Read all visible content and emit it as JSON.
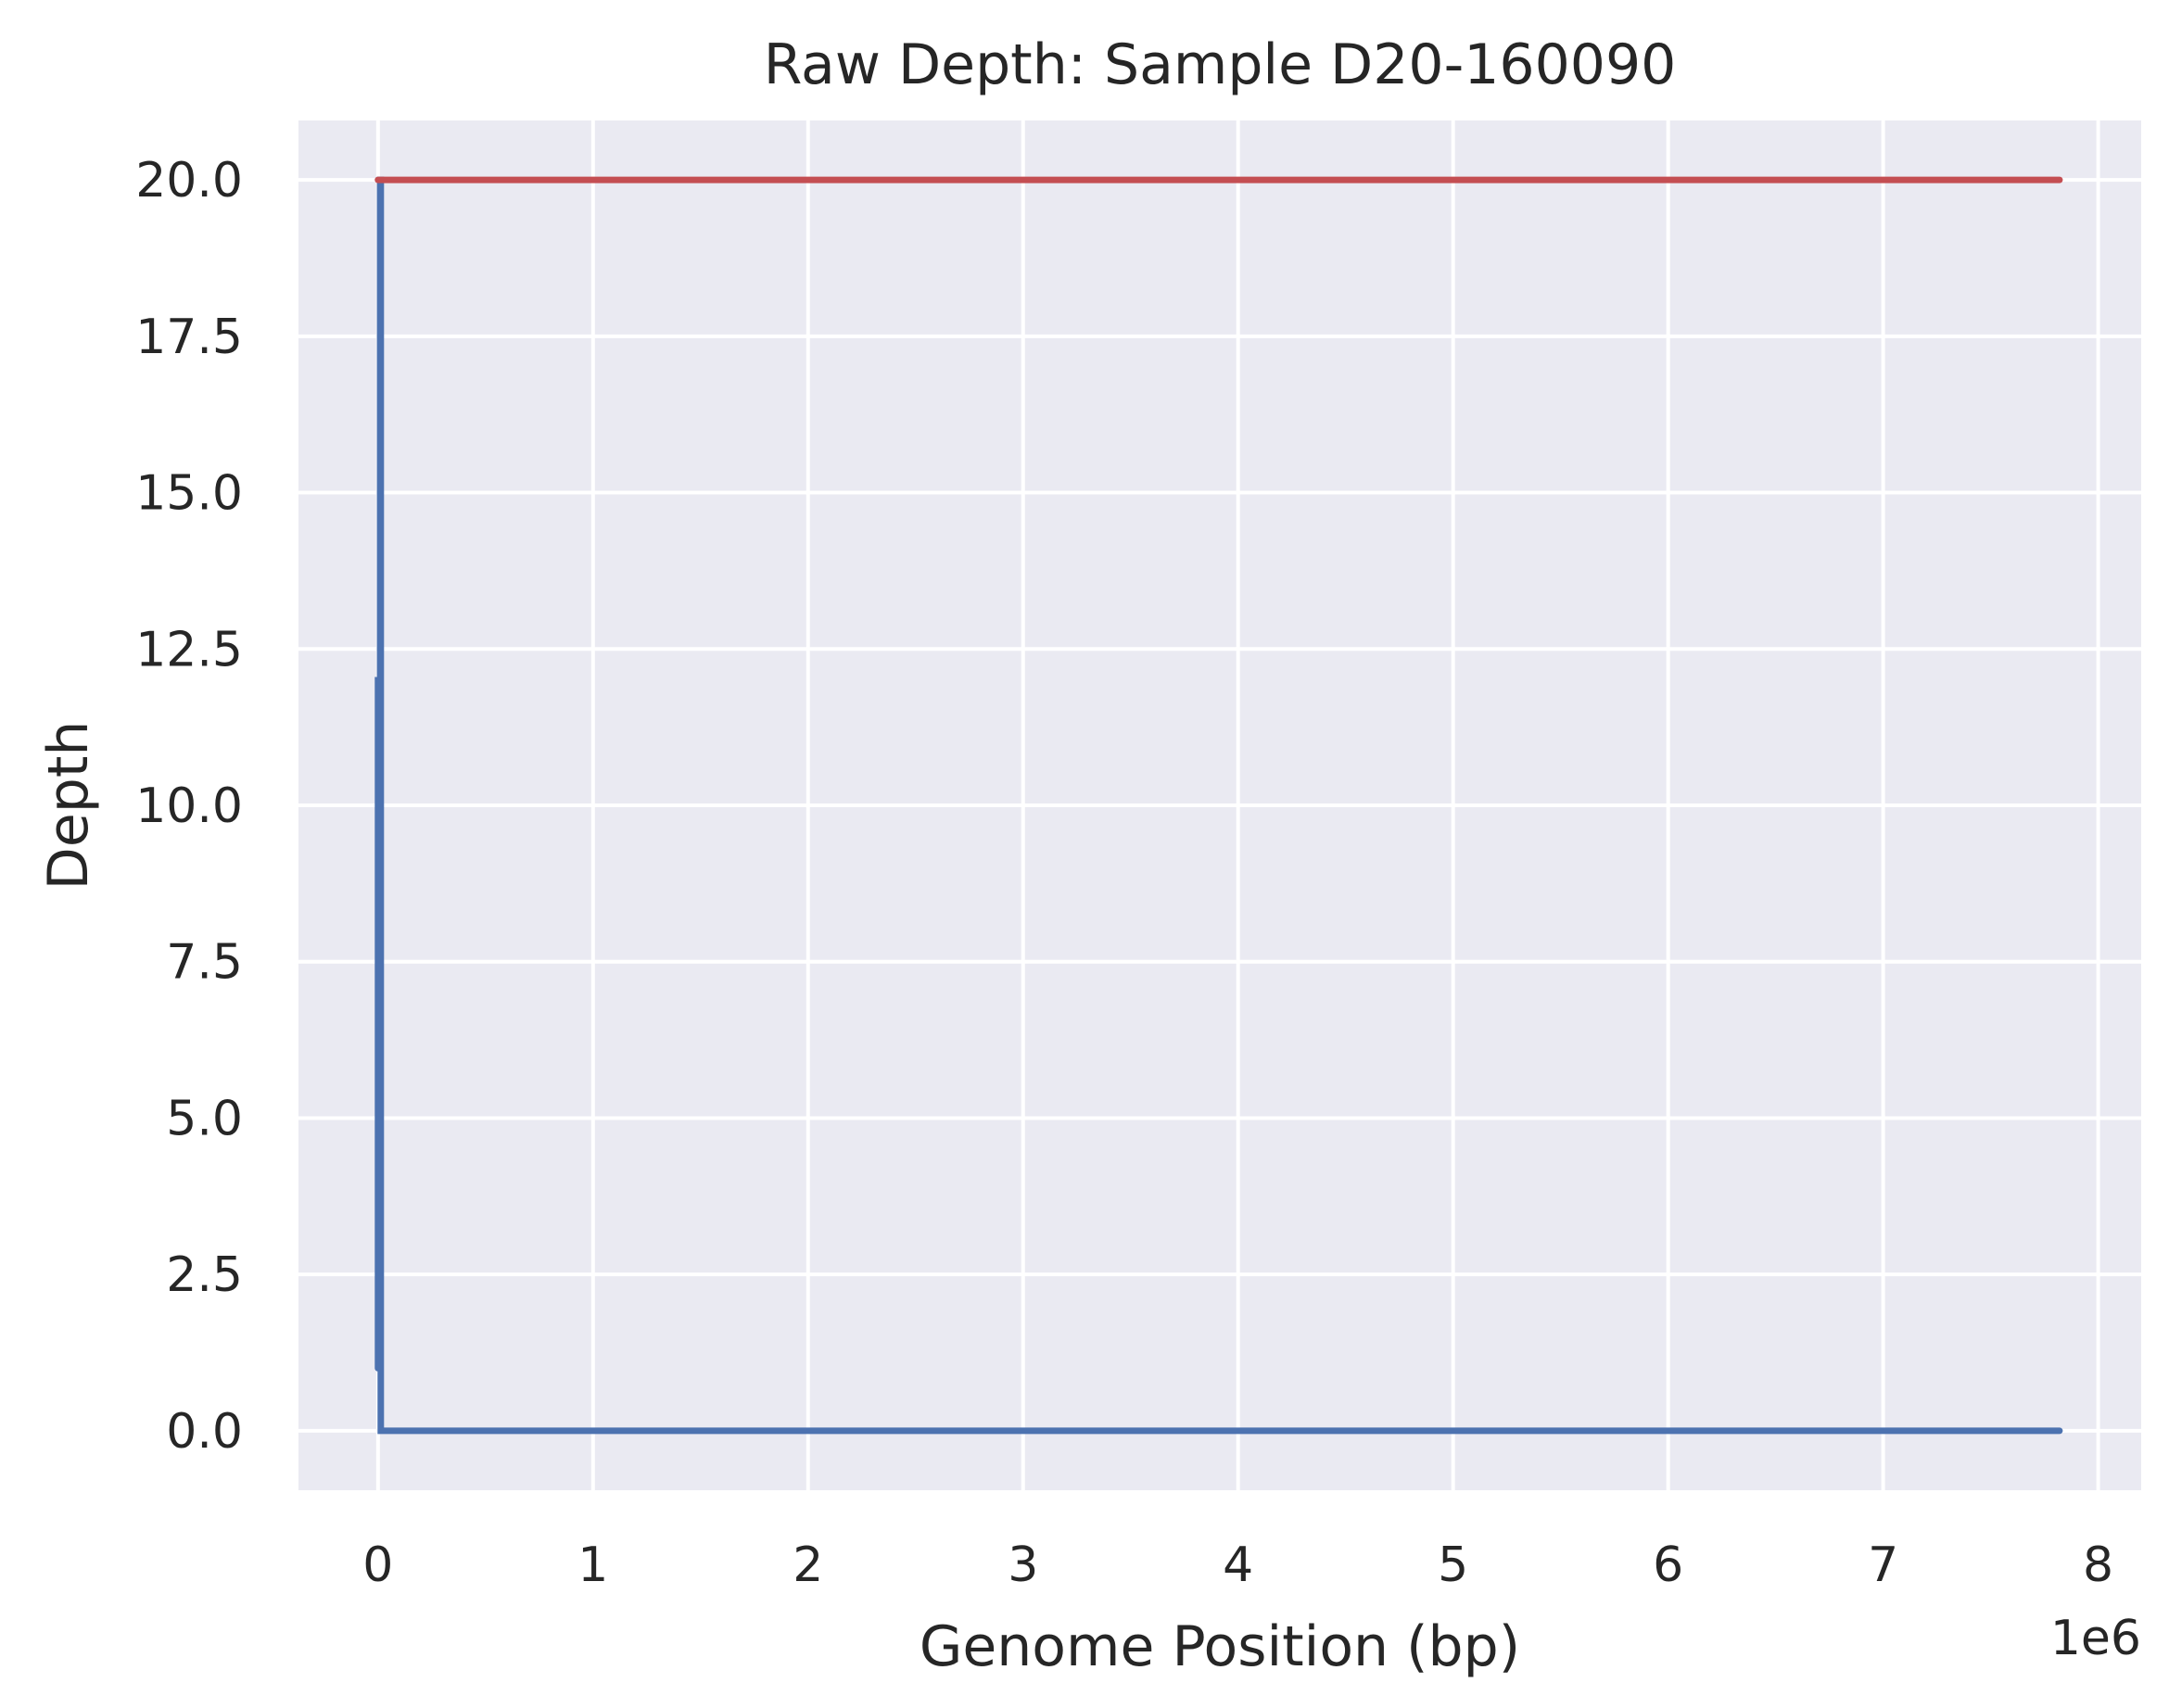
{
  "chart_data": {
    "type": "line",
    "title": "Raw Depth: Sample D20-160090",
    "xlabel": "Genome Position (bp)",
    "ylabel": "Depth",
    "x_offset_label": "1e6",
    "xlim": [
      -0.37,
      8.2
    ],
    "ylim": [
      -0.95,
      20.95
    ],
    "x_ticks": [
      0,
      1,
      2,
      3,
      4,
      5,
      6,
      7,
      8
    ],
    "x_tick_labels": [
      "0",
      "1",
      "2",
      "3",
      "4",
      "5",
      "6",
      "7",
      "8"
    ],
    "y_ticks": [
      0,
      2.5,
      5,
      7.5,
      10,
      12.5,
      15,
      17.5,
      20
    ],
    "y_tick_labels": [
      "0.0",
      "2.5",
      "5.0",
      "7.5",
      "10.0",
      "12.5",
      "15.0",
      "17.5",
      "20.0"
    ],
    "grid": true,
    "background": "#eaeaf2",
    "series": [
      {
        "color": "#4c72b0",
        "points": [
          [
            0,
            1
          ],
          [
            0,
            12
          ],
          [
            0.005,
            12
          ],
          [
            0.005,
            10
          ],
          [
            0.01,
            10
          ],
          [
            0.01,
            20
          ],
          [
            0.013,
            20
          ],
          [
            0.013,
            0
          ],
          [
            7.82,
            0
          ]
        ]
      },
      {
        "color": "#c44e52",
        "points": [
          [
            0,
            20
          ],
          [
            7.82,
            20
          ]
        ]
      }
    ]
  }
}
